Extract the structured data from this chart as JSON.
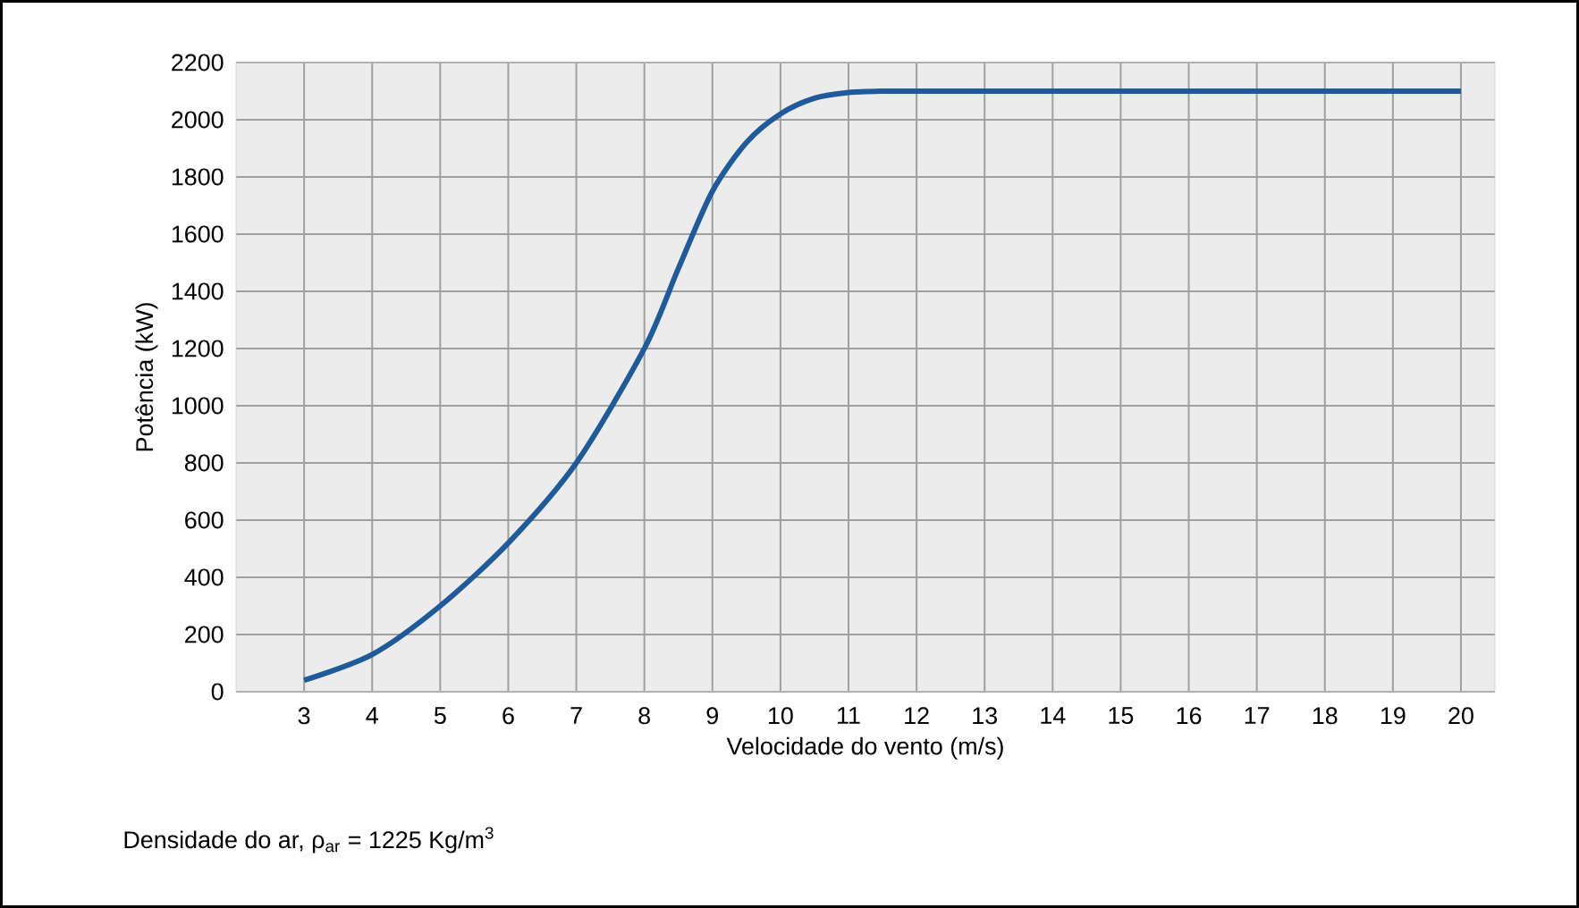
{
  "chart_data": {
    "type": "line",
    "xlabel": "Velocidade do vento (m/s)",
    "ylabel": "Potência (kW)",
    "x": [
      3,
      4,
      5,
      6,
      7,
      8,
      8.5,
      9,
      9.5,
      10,
      10.5,
      11,
      11.5,
      12,
      15,
      20
    ],
    "series": [
      {
        "color": "#1f5a9a",
        "values": [
          40,
          130,
          300,
          520,
          800,
          1200,
          1480,
          1750,
          1920,
          2020,
          2075,
          2095,
          2100,
          2100,
          2100,
          2100
        ]
      }
    ],
    "xlim": [
      2,
      20.5
    ],
    "ylim": [
      0,
      2200
    ],
    "xticks": [
      3,
      4,
      5,
      6,
      7,
      8,
      9,
      10,
      11,
      12,
      13,
      14,
      15,
      16,
      17,
      18,
      19,
      20
    ],
    "yticks": [
      0,
      200,
      400,
      600,
      800,
      1000,
      1200,
      1400,
      1600,
      1800,
      2000,
      2200
    ],
    "grid": true,
    "marker": "none",
    "line_style": "solid",
    "annotations": [
      "Densidade do ar, ρ$_{ar}$ = 1225 Kg/m$^{3}$"
    ]
  }
}
